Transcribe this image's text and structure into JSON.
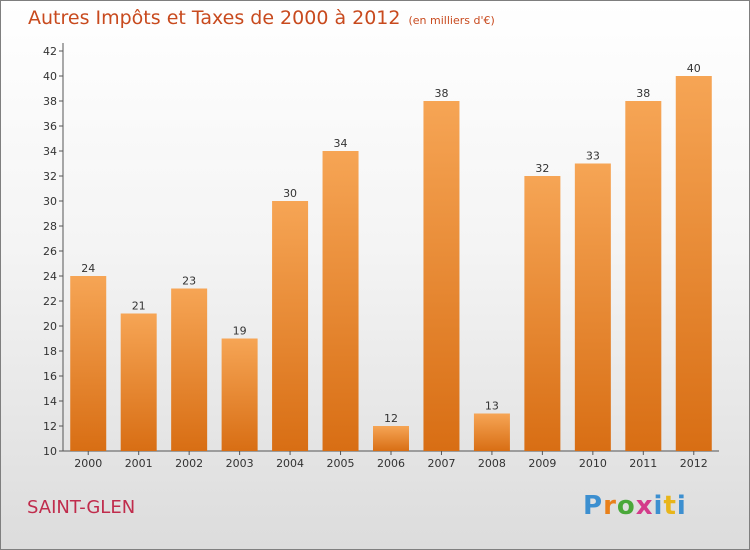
{
  "header": {
    "title": "Autres Impôts et Taxes de 2000 à 2012",
    "subtitle": "(en milliers d'€)"
  },
  "footer": {
    "place": "SAINT-GLEN",
    "logo": "Proxiti",
    "logo_colors": [
      "#3c8fd0",
      "#e8801a",
      "#4aa83a",
      "#d43b8a",
      "#3c8fd0",
      "#e8b51a",
      "#3c8fd0"
    ]
  },
  "colors": {
    "bar_top": "#f6a555",
    "bar_bottom": "#d86e14",
    "axis": "#555555",
    "title": "#c84a1e"
  },
  "chart_data": {
    "type": "bar",
    "categories": [
      "2000",
      "2001",
      "2002",
      "2003",
      "2004",
      "2005",
      "2006",
      "2007",
      "2008",
      "2009",
      "2010",
      "2011",
      "2012"
    ],
    "values": [
      24,
      21,
      23,
      19,
      30,
      34,
      12,
      38,
      13,
      32,
      33,
      38,
      40
    ],
    "ylim": [
      10,
      42
    ],
    "yticks": [
      10,
      12,
      14,
      16,
      18,
      20,
      22,
      24,
      26,
      28,
      30,
      32,
      34,
      36,
      38,
      40,
      42
    ],
    "grid": false,
    "data_labels": true
  }
}
